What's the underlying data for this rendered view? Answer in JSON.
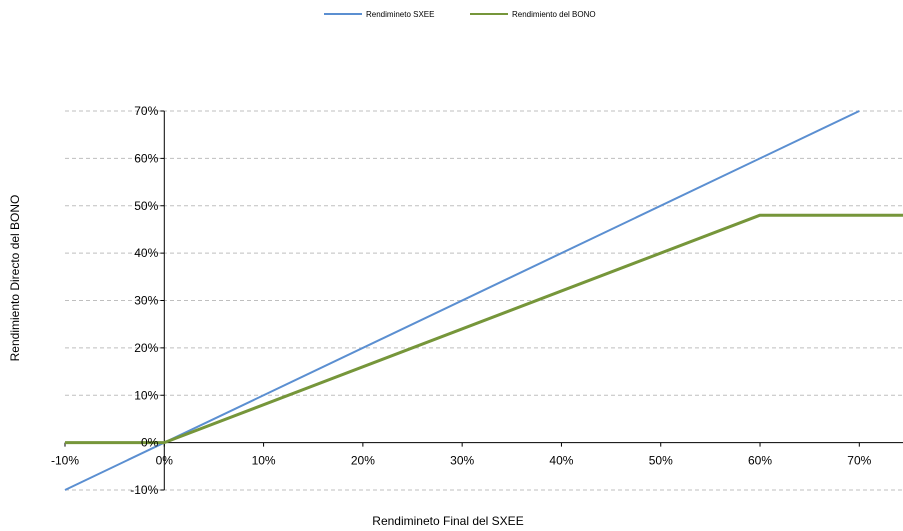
{
  "chart_data": {
    "type": "line",
    "title": "",
    "xlabel": "Rendimineto Final del SXEE",
    "ylabel": "Rendimiento Directo del BONO",
    "xlim": [
      -0.1,
      0.744
    ],
    "ylim": [
      -0.1,
      0.7
    ],
    "x_ticks": [
      -0.1,
      0,
      0.1,
      0.2,
      0.3,
      0.4,
      0.5,
      0.6,
      0.7
    ],
    "x_tick_labels": [
      "-10%",
      "0%",
      "10%",
      "20%",
      "30%",
      "40%",
      "50%",
      "60%",
      "70%"
    ],
    "y_ticks": [
      -0.1,
      0,
      0.1,
      0.2,
      0.3,
      0.4,
      0.5,
      0.6,
      0.7
    ],
    "y_tick_labels": [
      "-10%",
      "0%",
      "10%",
      "20%",
      "30%",
      "40%",
      "50%",
      "60%",
      "70%"
    ],
    "grid": "horizontal-dashed",
    "legend_position": "top-center",
    "series": [
      {
        "name": "Rendimineto SXEE",
        "color": "#5b8fd1",
        "x": [
          -0.1,
          0.7
        ],
        "y": [
          -0.1,
          0.7
        ]
      },
      {
        "name": "Rendimiento del BONO",
        "color": "#76963a",
        "x": [
          -0.1,
          0.0,
          0.6,
          0.744
        ],
        "y": [
          0.0,
          0.0,
          0.48,
          0.48
        ]
      }
    ]
  }
}
